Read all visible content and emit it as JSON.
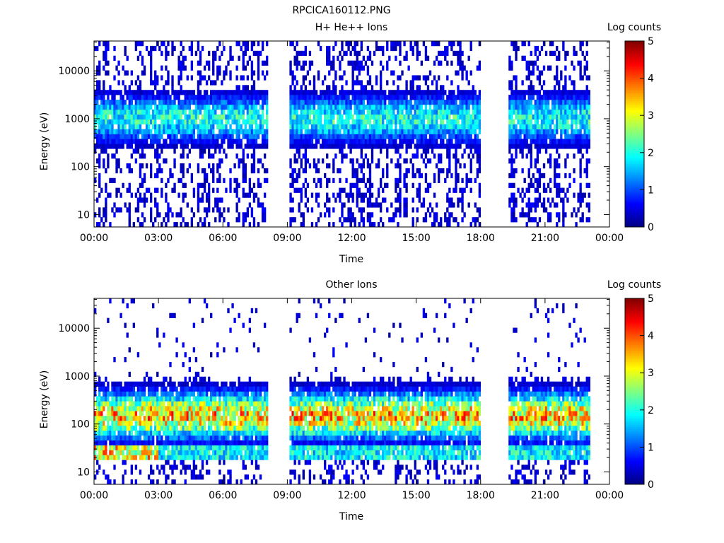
{
  "figure_title": "RPCICA160112.PNG",
  "colors": {
    "spectrogram_colormap": [
      "#00007f",
      "#0000ff",
      "#0080ff",
      "#00ffff",
      "#80ff80",
      "#ffff00",
      "#ff8000",
      "#ff0000",
      "#7f0000"
    ]
  },
  "chart_data": [
    {
      "type": "heatmap",
      "title": "H+ He++ Ions",
      "xlabel": "Time",
      "ylabel": "Energy (eV)",
      "x_ticks": [
        "00:00",
        "03:00",
        "06:00",
        "09:00",
        "12:00",
        "15:00",
        "18:00",
        "21:00",
        "00:00"
      ],
      "x_range_hours": [
        0,
        24
      ],
      "y_scale": "log",
      "y_ticks": [
        "10",
        "100",
        "1000",
        "10000"
      ],
      "y_range_eV": [
        5.5,
        42000
      ],
      "colorbar": {
        "label": "Log counts",
        "ticks": [
          "0",
          "1",
          "2",
          "3",
          "4",
          "5"
        ],
        "range": [
          0,
          5
        ]
      },
      "data_segments_hours": [
        [
          0,
          8.1
        ],
        [
          9.1,
          18.0
        ],
        [
          19.3,
          23.1
        ]
      ],
      "band_center_eV": 1000,
      "band_peak_log_counts": 2.3
    },
    {
      "type": "heatmap",
      "title": "Other Ions",
      "xlabel": "Time",
      "ylabel": "Energy (eV)",
      "x_ticks": [
        "00:00",
        "03:00",
        "06:00",
        "09:00",
        "12:00",
        "15:00",
        "18:00",
        "21:00",
        "00:00"
      ],
      "x_range_hours": [
        0,
        24
      ],
      "y_scale": "log",
      "y_ticks": [
        "10",
        "100",
        "1000",
        "10000"
      ],
      "y_range_eV": [
        5.5,
        42000
      ],
      "colorbar": {
        "label": "Log counts",
        "ticks": [
          "0",
          "1",
          "2",
          "3",
          "4",
          "5"
        ],
        "range": [
          0,
          5
        ]
      },
      "data_segments_hours": [
        [
          0,
          8.1
        ],
        [
          9.1,
          18.0
        ],
        [
          19.3,
          23.1
        ]
      ],
      "band_center_eV": 150,
      "band_peak_log_counts": 3.9
    }
  ]
}
